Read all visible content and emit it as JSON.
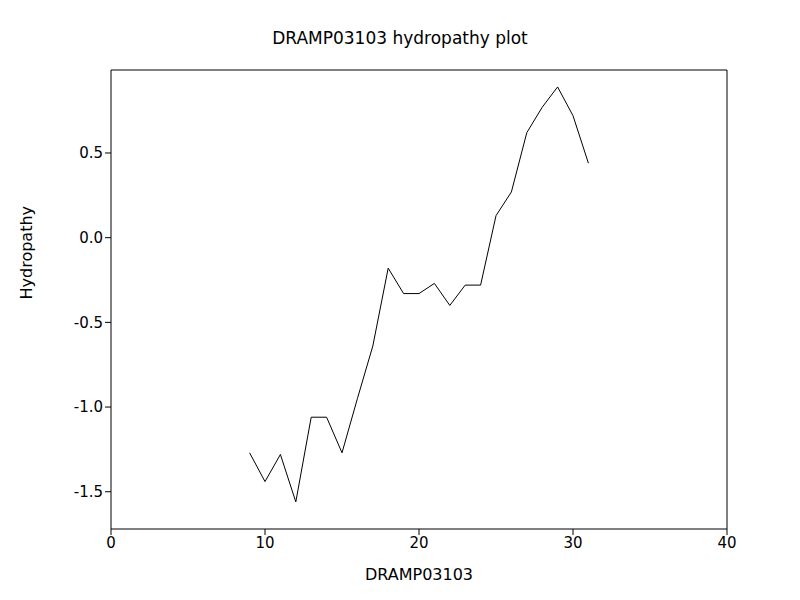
{
  "chart_data": {
    "type": "line",
    "title": "DRAMP03103 hydropathy plot",
    "x_label": "DRAMP03103",
    "y_label": "Hydropathy",
    "x": [
      9,
      10,
      11,
      12,
      13,
      14,
      15,
      16,
      17,
      18,
      19,
      20,
      21,
      22,
      23,
      24,
      25,
      26,
      27,
      28,
      29,
      30,
      31
    ],
    "values": [
      -1.27,
      -1.44,
      -1.28,
      -1.56,
      -1.06,
      -1.06,
      -1.27,
      -0.95,
      -0.64,
      -0.18,
      -0.33,
      -0.33,
      -0.27,
      -0.4,
      -0.28,
      -0.28,
      0.13,
      0.27,
      0.62,
      0.77,
      0.89,
      0.72,
      0.44
    ],
    "color": "#000000",
    "xlim": [
      0,
      40
    ],
    "xticks": [
      0,
      10,
      20,
      30,
      40
    ],
    "ylim": [
      -1.72,
      0.99
    ],
    "yticks": [
      -1.5,
      {
        "value": -1,
        "label": "-1.0"
      },
      -0.5,
      {
        "value": 0,
        "label": "0.0"
      },
      0.5
    ],
    "grid": false
  }
}
